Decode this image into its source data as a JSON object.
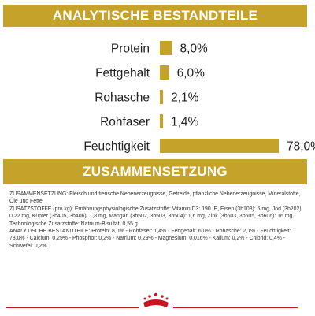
{
  "sections": {
    "analytics_title": "ANALYTISCHE BESTANDTEILE",
    "composition_title": "ZUSAMMENSETZUNG"
  },
  "chart_data": {
    "type": "bar",
    "orientation": "horizontal",
    "categories": [
      "Protein",
      "Fettgehalt",
      "Rohasche",
      "Rohfaser",
      "Feuchtigkeit"
    ],
    "values": [
      8.0,
      6.0,
      2.1,
      1.4,
      78.0
    ],
    "value_labels": [
      "8,0%",
      "6,0%",
      "2,1%",
      "1,4%",
      "78,0%"
    ],
    "unit": "%",
    "xlim": [
      0,
      78
    ],
    "grid": false,
    "legend": "none",
    "bar_color": "#c5a22a"
  },
  "composition": {
    "lines": [
      "ZUSAMMENSETZUNG: Fleisch und tierische Nebenerzeugnisse, Getreide, pflanzliche Nebenerzeugnisse, Mineralstoffe, Öle und Fette.",
      "ZUSATZSTOFFE (pro kg): Ernährungsphysiologische Zusatzstoffe: Vitamin D3: 190 IE, Eisen (3b103): 5 mg, Jod (3b202): 0,22 mg, Kupfer (3b405, 3b406): 1,8 mg, Mangan (3b502, 3b503, 3b504): 1,6 mg, Zink (3b603, 3b605, 3b606): 16 mg - Technologische Zusatzstoffe: Natrium-Bisulfat: 0,55 g.",
      "ANALYTISCHE BESTANDTEILE: Protein: 8,0% - Rohfaser: 1,4% - Fettgehalt: 6,0% - Rohasche: 2,1% - Feuchtigkeit: 78,0% - Calcium: 0,29% - Phosphor: 0,2% - Natrium: 0,29% - Magnesium: 0,016% - Kalium: 0,2% - Chlorid: 0,4% - Schwefel: 0,2%."
    ]
  },
  "colors": {
    "accent": "#c5a22a",
    "text": "#222222",
    "footer_red": "#c4161c"
  },
  "footer": {
    "logo_icon": "royal-canin-crown-logo"
  }
}
